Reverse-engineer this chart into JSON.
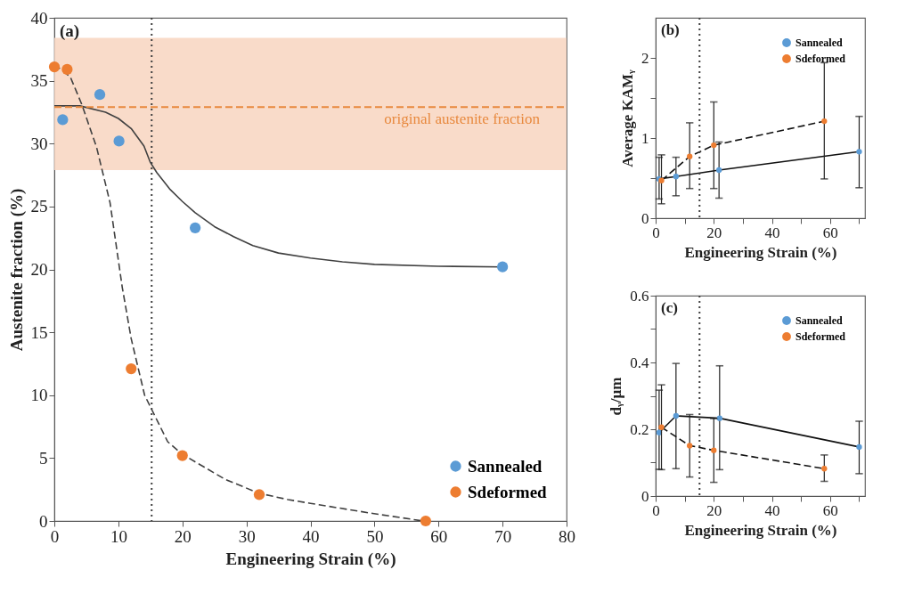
{
  "chart_data": [
    {
      "type": "scatter",
      "xlabel": "Engineering Strain (%)",
      "ylabel": "Austenite  fraction (%)",
      "annotations": [
        "(a)"
      ],
      "xlim": [
        0,
        80
      ],
      "ylim": [
        0,
        40
      ],
      "xticks": [
        0,
        10,
        20,
        30,
        40,
        50,
        60,
        70,
        80
      ],
      "yticks": [
        0,
        5,
        10,
        15,
        20,
        25,
        30,
        35,
        40
      ],
      "grid": false,
      "legend": "bottom right",
      "marker": "circle",
      "bands": [
        {
          "axis": "y",
          "from": 27.9,
          "to": 38.4,
          "color": "#f8d5bf"
        }
      ],
      "ref_lines": [
        {
          "axis": "y",
          "value": 32.9,
          "label": "original austenite fraction",
          "color": "#e8893e",
          "line_style": "dashed"
        },
        {
          "axis": "x",
          "value": 15.2,
          "color": "#404040",
          "line_style": "dotted"
        }
      ],
      "series": [
        {
          "type": "line",
          "marker": "none",
          "line_style": "solid",
          "color": "#404040",
          "x": [
            0,
            4,
            8,
            10,
            12,
            14,
            15,
            16,
            18,
            20,
            22,
            25,
            28,
            31,
            35,
            40,
            45,
            50,
            60,
            70
          ],
          "values": [
            33,
            33,
            32.5,
            32,
            31.2,
            29.8,
            28.5,
            27.7,
            26.4,
            25.4,
            24.5,
            23.4,
            22.6,
            21.9,
            21.3,
            20.9,
            20.6,
            20.4,
            20.25,
            20.2
          ]
        },
        {
          "type": "line",
          "marker": "none",
          "line_style": "dashed",
          "color": "#404040",
          "x": [
            0,
            2.5,
            4.3,
            6.6,
            8.7,
            10.6,
            12,
            14.1,
            17.7,
            20,
            26.7,
            32,
            36.5,
            40,
            49.7,
            57.6
          ],
          "values": [
            36.3,
            35.3,
            33.1,
            29.7,
            25.3,
            18.6,
            14.5,
            10,
            6.3,
            5.3,
            3.3,
            2.2,
            1.7,
            1.4,
            0.6,
            0
          ]
        },
        {
          "name": "Sannealed",
          "color": "#5b9bd5",
          "x": [
            1.3,
            7.1,
            10.1,
            22,
            70
          ],
          "values": [
            31.9,
            33.9,
            30.2,
            23.3,
            20.2
          ]
        },
        {
          "name": "Sdeformed",
          "color": "#ed7d31",
          "x": [
            0,
            2,
            12,
            20,
            32,
            58
          ],
          "values": [
            36.1,
            35.9,
            12.1,
            5.2,
            2.1,
            0
          ]
        }
      ]
    },
    {
      "type": "line",
      "xlabel": "Engineering Strain (%)",
      "ylabel": "Average KAMᵧ",
      "annotations": [
        "(b)"
      ],
      "xlim": [
        0,
        72
      ],
      "ylim": [
        0,
        2.5
      ],
      "xticks": [
        0,
        {
          "value": 10,
          "label": null
        },
        20,
        {
          "value": 30,
          "label": null
        },
        40,
        {
          "value": 50,
          "label": null
        },
        60,
        {
          "value": 70,
          "label": null
        }
      ],
      "yticks": [
        0,
        {
          "value": 0.5,
          "label": null
        },
        1,
        {
          "value": 1.5,
          "label": null
        },
        2
      ],
      "grid": false,
      "legend": "top right",
      "marker": "circle",
      "ref_lines": [
        {
          "axis": "x",
          "value": 15.1,
          "color": "#404040",
          "line_style": "dotted"
        }
      ],
      "series": [
        {
          "name": "Sannealed",
          "color": "#5b9bd5",
          "line_style": "solid",
          "x": [
            1.2,
            7,
            21.8,
            70
          ],
          "values": [
            0.49,
            0.52,
            0.6,
            0.83
          ],
          "errors": [
            [
              0.24,
              0.76
            ],
            [
              0.28,
              0.76
            ],
            [
              0.25,
              0.95
            ],
            [
              0.38,
              1.27
            ]
          ]
        },
        {
          "name": "Sdeformed",
          "color": "#ed7d31",
          "line_style": "dashed",
          "x": [
            2,
            11.7,
            20,
            58
          ],
          "values": [
            0.47,
            0.77,
            0.91,
            1.21
          ],
          "errors": [
            [
              0.18,
              0.79
            ],
            [
              0.37,
              1.19
            ],
            [
              0.37,
              1.45
            ],
            [
              0.49,
              1.94
            ]
          ]
        }
      ]
    },
    {
      "type": "line",
      "xlabel": "Engineering Strain (%)",
      "ylabel": "dᵧ/µm",
      "annotations": [
        "(c)"
      ],
      "xlim": [
        0,
        72
      ],
      "ylim": [
        0,
        0.6
      ],
      "xticks": [
        0,
        {
          "value": 10,
          "label": null
        },
        20,
        {
          "value": 30,
          "label": null
        },
        40,
        {
          "value": 50,
          "label": null
        },
        60,
        {
          "value": 70,
          "label": null
        }
      ],
      "yticks": [
        0,
        {
          "value": 0.1,
          "label": null
        },
        0.2,
        {
          "value": 0.3,
          "label": null
        },
        0.4,
        {
          "value": 0.5,
          "label": null
        },
        0.6
      ],
      "grid": false,
      "legend": "top right",
      "marker": "circle",
      "ref_lines": [
        {
          "axis": "x",
          "value": 15.1,
          "color": "#404040",
          "line_style": "dotted"
        }
      ],
      "series": [
        {
          "name": "Sannealed",
          "color": "#5b9bd5",
          "line_style": "solid",
          "x": [
            1.2,
            7,
            22,
            70
          ],
          "values": [
            0.19,
            0.24,
            0.233,
            0.147
          ],
          "errors": [
            [
              0.08,
              0.317
            ],
            [
              0.082,
              0.397
            ],
            [
              0.079,
              0.39
            ],
            [
              0.067,
              0.224
            ]
          ]
        },
        {
          "name": "Sdeformed",
          "color": "#ed7d31",
          "line_style": "dashed",
          "x": [
            2,
            11.7,
            20,
            58
          ],
          "values": [
            0.206,
            0.151,
            0.137,
            0.082
          ],
          "errors": [
            [
              0.079,
              0.333
            ],
            [
              0.057,
              0.244
            ],
            [
              0.041,
              0.232
            ],
            [
              0.044,
              0.123
            ]
          ]
        }
      ]
    }
  ]
}
